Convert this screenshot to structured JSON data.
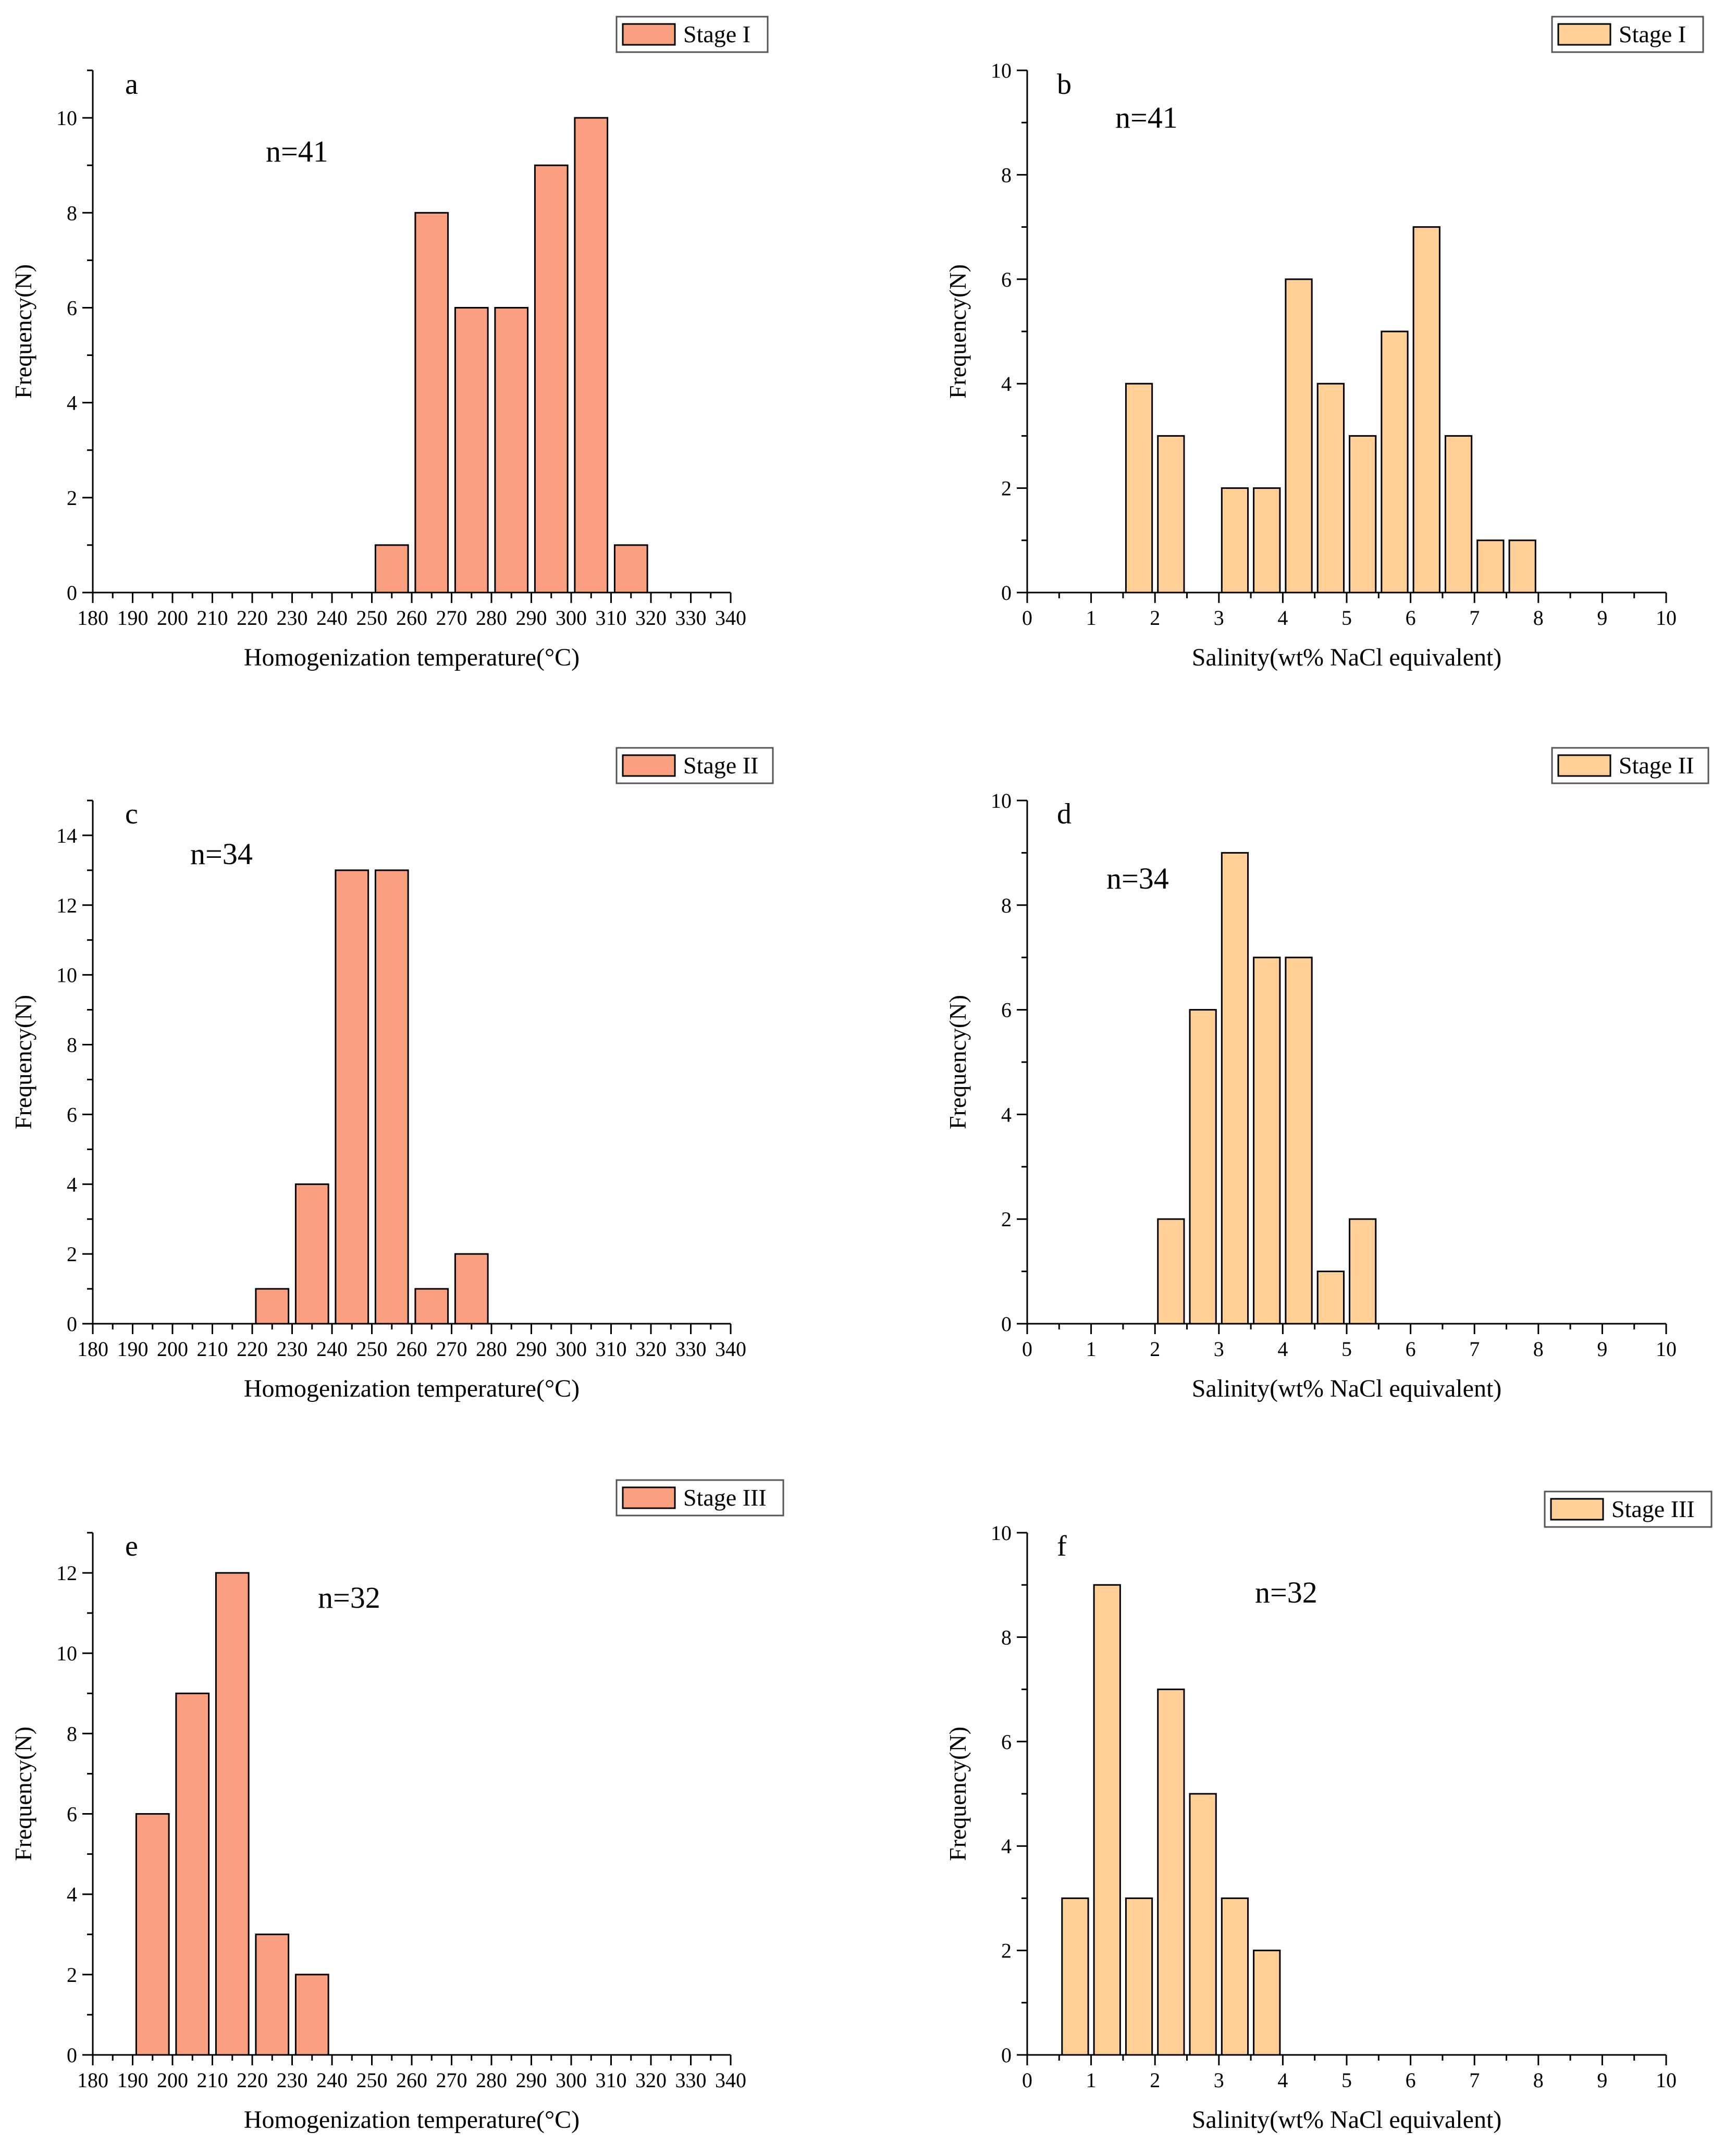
{
  "figure": {
    "colors": {
      "temperature_fill": "#FA9F7F",
      "salinity_fill": "#FFCF96",
      "stroke": "#000000"
    }
  },
  "chart_data": [
    {
      "id": "a",
      "type": "bar",
      "panel_label": "a",
      "legend": "Stage I",
      "annotation": "n=41",
      "xlabel": "Homogenization temperature(°C)",
      "ylabel": "Frequency(N)",
      "xlim": [
        180,
        340
      ],
      "xticks": [
        180,
        190,
        200,
        210,
        220,
        230,
        240,
        250,
        260,
        270,
        280,
        290,
        300,
        310,
        320,
        330,
        340
      ],
      "ylim": [
        0,
        11
      ],
      "yticks": [
        0,
        2,
        4,
        6,
        8,
        10
      ],
      "bin_width": 10,
      "bins": [
        {
          "start": 250,
          "end": 260,
          "value": 1
        },
        {
          "start": 260,
          "end": 270,
          "value": 8
        },
        {
          "start": 270,
          "end": 280,
          "value": 6
        },
        {
          "start": 280,
          "end": 290,
          "value": 6
        },
        {
          "start": 290,
          "end": 300,
          "value": 9
        },
        {
          "start": 300,
          "end": 310,
          "value": 10
        },
        {
          "start": 310,
          "end": 320,
          "value": 1
        }
      ]
    },
    {
      "id": "b",
      "type": "bar",
      "panel_label": "b",
      "legend": "Stage I",
      "annotation": "n=41",
      "xlabel": "Salinity(wt% NaCl equivalent)",
      "ylabel": "Frequency(N)",
      "xlim": [
        0,
        10
      ],
      "xticks": [
        0,
        1,
        2,
        3,
        4,
        5,
        6,
        7,
        8,
        9,
        10
      ],
      "ylim": [
        0,
        10
      ],
      "yticks": [
        0,
        2,
        4,
        6,
        8,
        10
      ],
      "bin_width": 0.5,
      "bins": [
        {
          "start": 1.5,
          "end": 2.0,
          "value": 4
        },
        {
          "start": 2.0,
          "end": 2.5,
          "value": 3
        },
        {
          "start": 3.0,
          "end": 3.5,
          "value": 2
        },
        {
          "start": 3.5,
          "end": 4.0,
          "value": 2
        },
        {
          "start": 4.0,
          "end": 4.5,
          "value": 6
        },
        {
          "start": 4.5,
          "end": 5.0,
          "value": 4
        },
        {
          "start": 5.0,
          "end": 5.5,
          "value": 3
        },
        {
          "start": 5.5,
          "end": 6.0,
          "value": 5
        },
        {
          "start": 6.0,
          "end": 6.5,
          "value": 7
        },
        {
          "start": 6.5,
          "end": 7.0,
          "value": 3
        },
        {
          "start": 7.0,
          "end": 7.5,
          "value": 1
        },
        {
          "start": 7.5,
          "end": 8.0,
          "value": 1
        }
      ]
    },
    {
      "id": "c",
      "type": "bar",
      "panel_label": "c",
      "legend": "Stage II",
      "annotation": "n=34",
      "xlabel": "Homogenization temperature(°C)",
      "ylabel": "Frequency(N)",
      "xlim": [
        180,
        340
      ],
      "xticks": [
        180,
        190,
        200,
        210,
        220,
        230,
        240,
        250,
        260,
        270,
        280,
        290,
        300,
        310,
        320,
        330,
        340
      ],
      "ylim": [
        0,
        15
      ],
      "yticks": [
        0,
        2,
        4,
        6,
        8,
        10,
        12,
        14
      ],
      "bin_width": 10,
      "bins": [
        {
          "start": 220,
          "end": 230,
          "value": 1
        },
        {
          "start": 230,
          "end": 240,
          "value": 4
        },
        {
          "start": 240,
          "end": 250,
          "value": 13
        },
        {
          "start": 250,
          "end": 260,
          "value": 13
        },
        {
          "start": 260,
          "end": 270,
          "value": 1
        },
        {
          "start": 270,
          "end": 280,
          "value": 2
        }
      ]
    },
    {
      "id": "d",
      "type": "bar",
      "panel_label": "d",
      "legend": "Stage II",
      "annotation": "n=34",
      "xlabel": "Salinity(wt% NaCl equivalent)",
      "ylabel": "Frequency(N)",
      "xlim": [
        0,
        10
      ],
      "xticks": [
        0,
        1,
        2,
        3,
        4,
        5,
        6,
        7,
        8,
        9,
        10
      ],
      "ylim": [
        0,
        10
      ],
      "yticks": [
        0,
        2,
        4,
        6,
        8,
        10
      ],
      "bin_width": 0.5,
      "bins": [
        {
          "start": 2.0,
          "end": 2.5,
          "value": 2
        },
        {
          "start": 2.5,
          "end": 3.0,
          "value": 6
        },
        {
          "start": 3.0,
          "end": 3.5,
          "value": 9
        },
        {
          "start": 3.5,
          "end": 4.0,
          "value": 7
        },
        {
          "start": 4.0,
          "end": 4.5,
          "value": 7
        },
        {
          "start": 4.5,
          "end": 5.0,
          "value": 1
        },
        {
          "start": 5.0,
          "end": 5.5,
          "value": 2
        }
      ]
    },
    {
      "id": "e",
      "type": "bar",
      "panel_label": "e",
      "legend": "Stage III",
      "annotation": "n=32",
      "xlabel": "Homogenization temperature(°C)",
      "ylabel": "Frequency(N)",
      "xlim": [
        180,
        340
      ],
      "xticks": [
        180,
        190,
        200,
        210,
        220,
        230,
        240,
        250,
        260,
        270,
        280,
        290,
        300,
        310,
        320,
        330,
        340
      ],
      "ylim": [
        0,
        13
      ],
      "yticks": [
        0,
        2,
        4,
        6,
        8,
        10,
        12
      ],
      "bin_width": 10,
      "bins": [
        {
          "start": 190,
          "end": 200,
          "value": 6
        },
        {
          "start": 200,
          "end": 210,
          "value": 9
        },
        {
          "start": 210,
          "end": 220,
          "value": 12
        },
        {
          "start": 220,
          "end": 230,
          "value": 3
        },
        {
          "start": 230,
          "end": 240,
          "value": 2
        }
      ]
    },
    {
      "id": "f",
      "type": "bar",
      "panel_label": "f",
      "legend": "Stage III",
      "annotation": "n=32",
      "xlabel": "Salinity(wt% NaCl equivalent)",
      "ylabel": "Frequency(N)",
      "xlim": [
        0,
        10
      ],
      "xticks": [
        0,
        1,
        2,
        3,
        4,
        5,
        6,
        7,
        8,
        9,
        10
      ],
      "ylim": [
        0,
        10
      ],
      "yticks": [
        0,
        2,
        4,
        6,
        8,
        10
      ],
      "bin_width": 0.5,
      "bins": [
        {
          "start": 0.5,
          "end": 1.0,
          "value": 3
        },
        {
          "start": 1.0,
          "end": 1.5,
          "value": 9
        },
        {
          "start": 1.5,
          "end": 2.0,
          "value": 3
        },
        {
          "start": 2.0,
          "end": 2.5,
          "value": 7
        },
        {
          "start": 2.5,
          "end": 3.0,
          "value": 5
        },
        {
          "start": 3.0,
          "end": 3.5,
          "value": 3
        },
        {
          "start": 3.5,
          "end": 4.0,
          "value": 2
        }
      ]
    }
  ]
}
